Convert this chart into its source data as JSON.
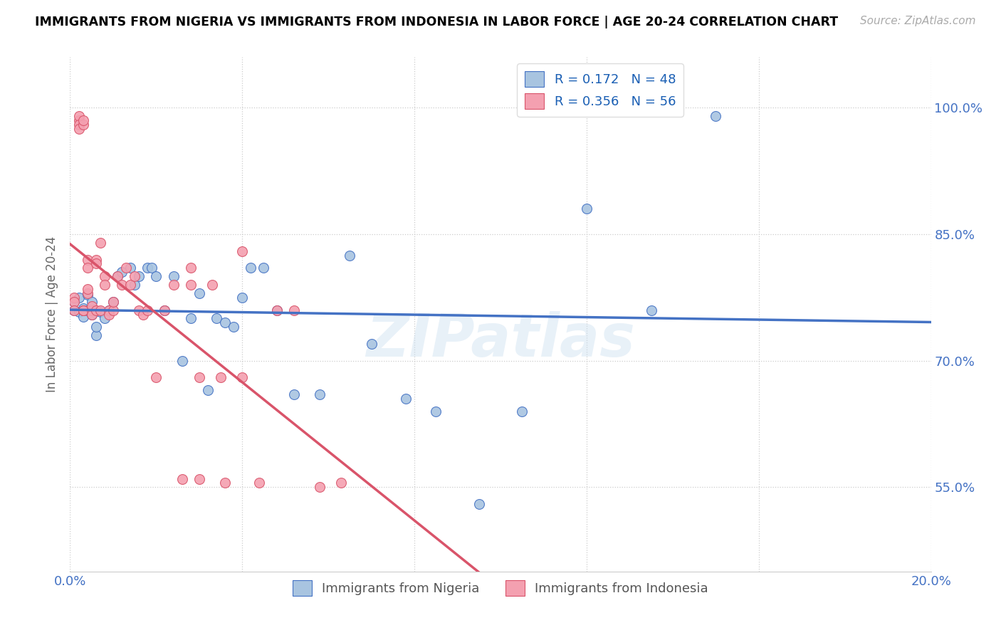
{
  "title": "IMMIGRANTS FROM NIGERIA VS IMMIGRANTS FROM INDONESIA IN LABOR FORCE | AGE 20-24 CORRELATION CHART",
  "source": "Source: ZipAtlas.com",
  "ylabel": "In Labor Force | Age 20-24",
  "x_min": 0.0,
  "x_max": 0.2,
  "y_min": 0.45,
  "y_max": 1.06,
  "y_ticks": [
    0.55,
    0.7,
    0.85,
    1.0
  ],
  "y_tick_labels": [
    "55.0%",
    "70.0%",
    "85.0%",
    "100.0%"
  ],
  "x_ticks": [
    0.0,
    0.04,
    0.08,
    0.12,
    0.16,
    0.2
  ],
  "nigeria_color": "#a8c4e0",
  "indonesia_color": "#f4a0b0",
  "nigeria_line_color": "#4472c4",
  "indonesia_line_color": "#d9546a",
  "R_nigeria": 0.172,
  "N_nigeria": 48,
  "R_indonesia": 0.356,
  "N_indonesia": 56,
  "nigeria_scatter_x": [
    0.001,
    0.001,
    0.002,
    0.002,
    0.003,
    0.003,
    0.004,
    0.004,
    0.005,
    0.005,
    0.006,
    0.006,
    0.007,
    0.008,
    0.009,
    0.01,
    0.011,
    0.012,
    0.014,
    0.015,
    0.016,
    0.018,
    0.019,
    0.02,
    0.022,
    0.024,
    0.026,
    0.028,
    0.03,
    0.032,
    0.034,
    0.036,
    0.038,
    0.04,
    0.042,
    0.045,
    0.048,
    0.052,
    0.058,
    0.065,
    0.07,
    0.078,
    0.085,
    0.095,
    0.105,
    0.12,
    0.135,
    0.15
  ],
  "nigeria_scatter_y": [
    0.77,
    0.76,
    0.775,
    0.758,
    0.762,
    0.752,
    0.778,
    0.76,
    0.77,
    0.755,
    0.73,
    0.74,
    0.758,
    0.75,
    0.76,
    0.77,
    0.8,
    0.805,
    0.81,
    0.79,
    0.8,
    0.81,
    0.81,
    0.8,
    0.76,
    0.8,
    0.7,
    0.75,
    0.78,
    0.665,
    0.75,
    0.745,
    0.74,
    0.775,
    0.81,
    0.81,
    0.76,
    0.66,
    0.66,
    0.825,
    0.72,
    0.655,
    0.64,
    0.53,
    0.64,
    0.88,
    0.76,
    0.99
  ],
  "indonesia_scatter_x": [
    0.001,
    0.001,
    0.001,
    0.002,
    0.002,
    0.002,
    0.002,
    0.003,
    0.003,
    0.003,
    0.003,
    0.003,
    0.004,
    0.004,
    0.004,
    0.004,
    0.005,
    0.005,
    0.005,
    0.006,
    0.006,
    0.006,
    0.007,
    0.007,
    0.008,
    0.008,
    0.009,
    0.009,
    0.01,
    0.01,
    0.011,
    0.012,
    0.013,
    0.014,
    0.015,
    0.016,
    0.017,
    0.018,
    0.02,
    0.022,
    0.024,
    0.026,
    0.028,
    0.03,
    0.033,
    0.036,
    0.04,
    0.044,
    0.048,
    0.052,
    0.058,
    0.063,
    0.03,
    0.035,
    0.028,
    0.04
  ],
  "indonesia_scatter_y": [
    0.775,
    0.77,
    0.76,
    0.985,
    0.99,
    0.98,
    0.975,
    0.98,
    0.985,
    0.76,
    0.76,
    0.76,
    0.78,
    0.785,
    0.82,
    0.81,
    0.76,
    0.755,
    0.765,
    0.82,
    0.815,
    0.76,
    0.84,
    0.76,
    0.8,
    0.79,
    0.76,
    0.755,
    0.76,
    0.77,
    0.8,
    0.79,
    0.81,
    0.79,
    0.8,
    0.76,
    0.755,
    0.76,
    0.68,
    0.76,
    0.79,
    0.56,
    0.81,
    0.68,
    0.79,
    0.555,
    0.83,
    0.555,
    0.76,
    0.76,
    0.55,
    0.555,
    0.56,
    0.68,
    0.79,
    0.68
  ]
}
